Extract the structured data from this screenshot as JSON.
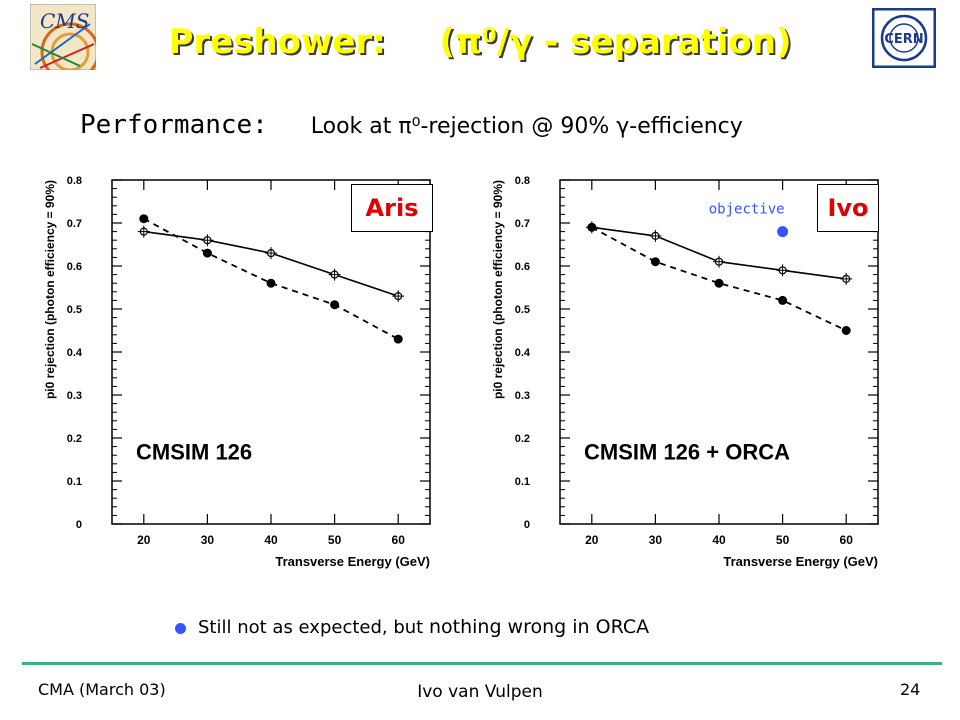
{
  "header": {
    "title_prefix": "Preshower:",
    "title_rest": "(π⁰/γ  - separation)",
    "logo_left_text": "CMS",
    "logo_right_text": "CERN"
  },
  "subtitle": {
    "label": "Performance:",
    "text": "Look at π⁰-rejection @ 90% γ-efficiency"
  },
  "colors": {
    "title": "#ffff00",
    "method_label": "#e00000",
    "objective": "#3355ff",
    "footer_rule": "#3cb371",
    "bullet": "#3355ff"
  },
  "chart_data": [
    {
      "type": "line",
      "method_label": "Aris",
      "annotation": "CMSIM 126",
      "xlabel": "Transverse Energy (GeV)",
      "ylabel": "pi0 rejection (photon efficiency = 90%)",
      "xlim": [
        15,
        65
      ],
      "ylim": [
        0,
        0.8
      ],
      "xticks": [
        "20",
        "30",
        "40",
        "50",
        "60"
      ],
      "yticks": [
        "0",
        "0.1",
        "0.2",
        "0.3",
        "0.4",
        "0.5",
        "0.6",
        "0.7",
        "0.8"
      ],
      "x": [
        20,
        30,
        40,
        50,
        60
      ],
      "series": [
        {
          "style": "solid",
          "marker": "open-cross",
          "values": [
            0.68,
            0.66,
            0.63,
            0.58,
            0.53
          ]
        },
        {
          "style": "dashed",
          "marker": "filled-circle",
          "values": [
            0.71,
            0.63,
            0.56,
            0.51,
            0.43
          ]
        }
      ]
    },
    {
      "type": "line",
      "method_label": "Ivo",
      "annotation": "CMSIM 126 + ORCA",
      "xlabel": "Transverse Energy (GeV)",
      "ylabel": "pi0 rejection (photon efficiency = 90%)",
      "xlim": [
        15,
        65
      ],
      "ylim": [
        0,
        0.8
      ],
      "xticks": [
        "20",
        "30",
        "40",
        "50",
        "60"
      ],
      "yticks": [
        "0",
        "0.1",
        "0.2",
        "0.3",
        "0.4",
        "0.5",
        "0.6",
        "0.7",
        "0.8"
      ],
      "x": [
        20,
        30,
        40,
        50,
        60
      ],
      "series": [
        {
          "style": "solid",
          "marker": "open-cross",
          "values": [
            0.69,
            0.67,
            0.61,
            0.59,
            0.57
          ]
        },
        {
          "style": "dashed",
          "marker": "filled-circle",
          "values": [
            0.69,
            0.61,
            0.56,
            0.52,
            0.45
          ]
        }
      ],
      "objective": {
        "label": "objective",
        "x": 50,
        "y": 0.68
      }
    }
  ],
  "bullet": {
    "text_a": "Still not as expected, but ",
    "text_b": "nothing wrong in ORCA"
  },
  "footer": {
    "left": "CMA (March 03)",
    "center": "Ivo van Vulpen",
    "page": "24"
  }
}
